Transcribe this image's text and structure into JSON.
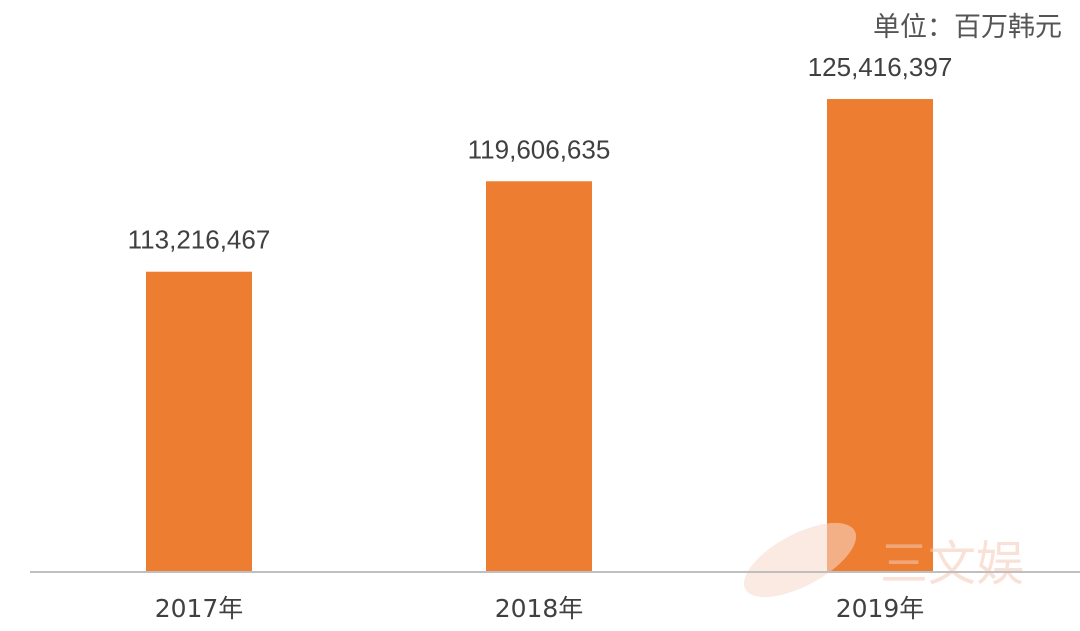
{
  "chart_data": {
    "type": "bar",
    "unit_label": "单位：百万韩元",
    "categories": [
      "2017年",
      "2018年",
      "2019年"
    ],
    "values": [
      113216467,
      119606635,
      125416397
    ],
    "value_labels": [
      "113,216,467",
      "119,606,635",
      "125,416,397"
    ],
    "bar_color": "#ED7D31",
    "axis_color": "#BFBFBF",
    "label_color": "#404040",
    "unit_color": "#555555",
    "ylim": [
      92000000,
      131000000
    ],
    "grid": false,
    "legend": "none"
  },
  "watermark": {
    "text": "三文娱",
    "color": "#F6C9B7"
  }
}
